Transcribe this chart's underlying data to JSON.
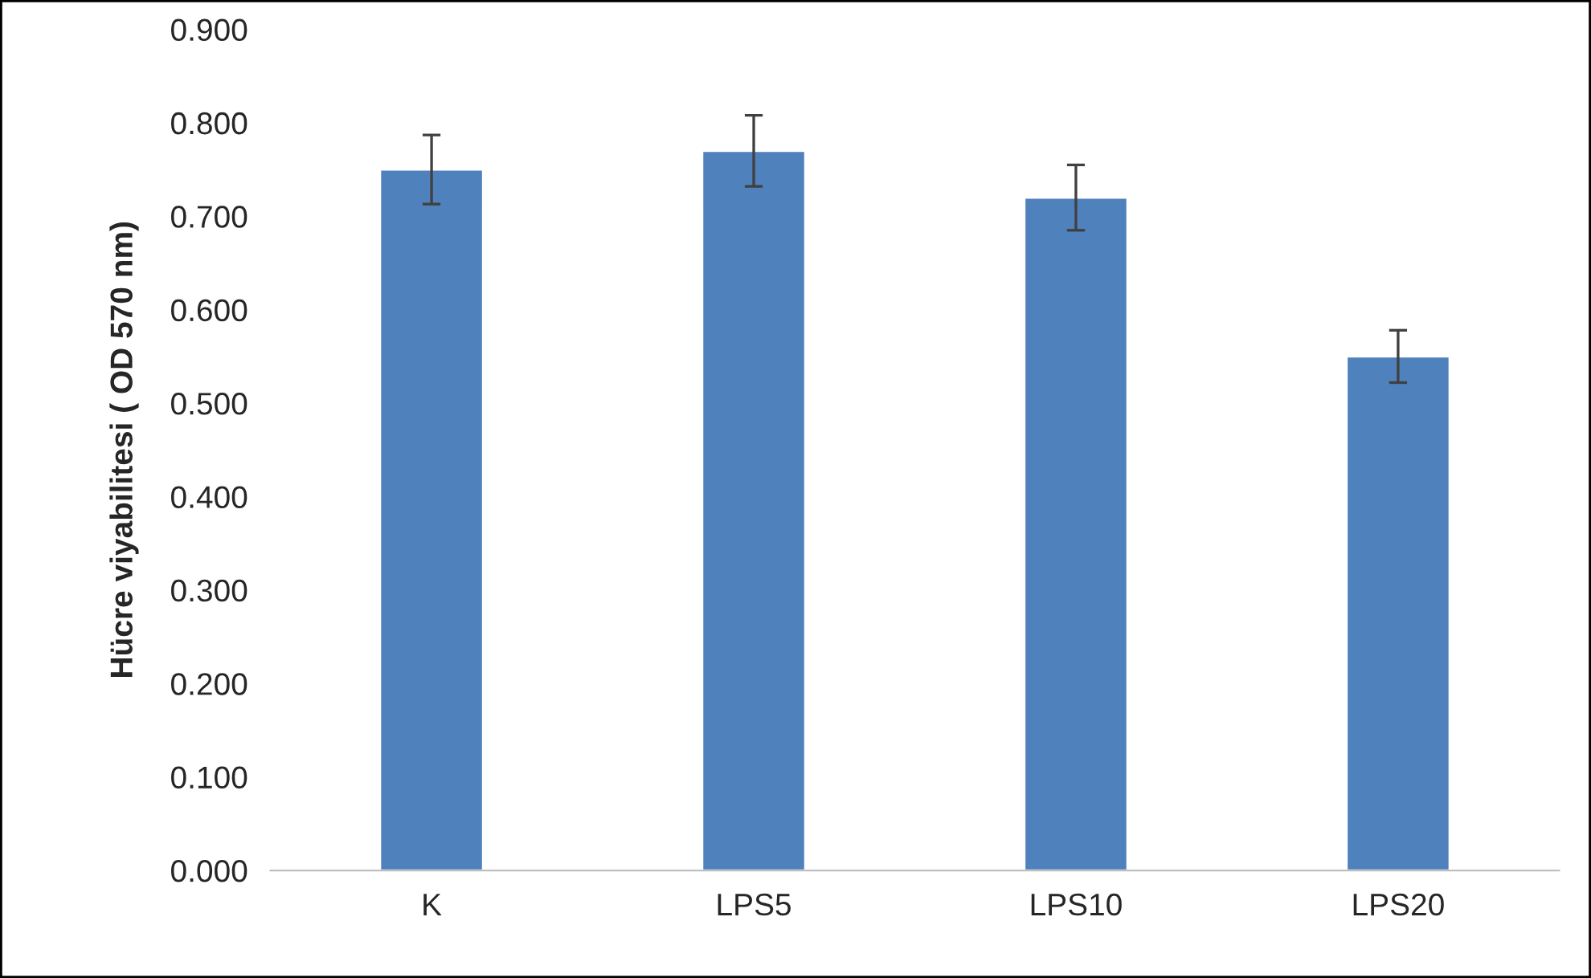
{
  "chart_data": {
    "type": "bar",
    "ylabel": "Hücre viyabilitesi ( OD 570 nm)",
    "categories": [
      "K",
      "LPS5",
      "LPS10",
      "LPS20"
    ],
    "values": [
      0.75,
      0.77,
      0.72,
      0.55
    ],
    "errors": [
      0.037,
      0.038,
      0.035,
      0.028
    ],
    "color": "#4f81bd",
    "ylim": [
      0,
      0.9
    ],
    "yticks": [
      {
        "value": 0,
        "label": "0.000"
      },
      {
        "value": 0.1,
        "label": "0.100"
      },
      {
        "value": 0.2,
        "label": "0.200"
      },
      {
        "value": 0.3,
        "label": "0.300"
      },
      {
        "value": 0.4,
        "label": "0.400"
      },
      {
        "value": 0.5,
        "label": "0.500"
      },
      {
        "value": 0.6,
        "label": "0.600"
      },
      {
        "value": 0.7,
        "label": "0.700"
      },
      {
        "value": 0.8,
        "label": "0.800"
      },
      {
        "value": 0.9,
        "label": "0.900"
      }
    ],
    "grid": false,
    "legend": false
  }
}
